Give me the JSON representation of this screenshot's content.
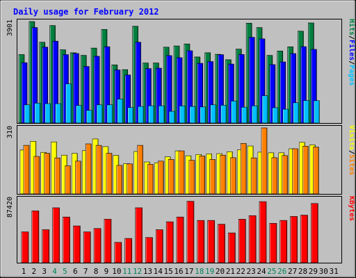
{
  "chart_data": {
    "type": "bar",
    "title": "Daily usage for February 2012",
    "x": [
      "1",
      "2",
      "3",
      "4",
      "5",
      "6",
      "7",
      "8",
      "9",
      "10",
      "11",
      "12",
      "13",
      "14",
      "15",
      "16",
      "17",
      "18",
      "19",
      "20",
      "21",
      "22",
      "23",
      "24",
      "25",
      "26",
      "27",
      "28",
      "29",
      "30",
      "31"
    ],
    "weekend_days": [
      "4",
      "5",
      "11",
      "12",
      "18",
      "19",
      "25",
      "26"
    ],
    "panels": [
      {
        "id": "hits-files-pages",
        "ymax_label": "3901",
        "ylim": [
          0,
          3901
        ],
        "legend": [
          "Pages",
          "/",
          "Files",
          "/",
          "Hits"
        ],
        "series": [
          {
            "name": "Hits",
            "color": "#008040",
            "values": [
              2632,
              3901,
              3106,
              3748,
              2817,
              2701,
              2603,
              2882,
              3598,
              2236,
              2052,
              3720,
              2308,
              2308,
              2916,
              2964,
              3040,
              2540,
              2702,
              2642,
              2434,
              2842,
              3838,
              3670,
              2600,
              2768,
              2930,
              3531,
              3848,
              null,
              null
            ]
          },
          {
            "name": "Files",
            "color": "#0000ff",
            "values": [
              2319,
              3672,
              2918,
              3148,
              2630,
              2674,
              2175,
              2567,
              2934,
              2043,
              1848,
              3109,
              2094,
              2110,
              2593,
              2513,
              2779,
              2296,
              2364,
              2628,
              2268,
              2636,
              3297,
              3236,
              2246,
              2348,
              2671,
              2936,
              2832,
              null,
              null
            ]
          },
          {
            "name": "Pages",
            "color": "#00c0ff",
            "values": [
              701,
              765,
              745,
              745,
              1505,
              676,
              489,
              701,
              701,
              922,
              597,
              638,
              663,
              663,
              451,
              659,
              638,
              619,
              701,
              683,
              847,
              608,
              662,
              1050,
              589,
              533,
              781,
              866,
              861,
              null,
              null
            ]
          }
        ]
      },
      {
        "id": "visits-sites",
        "ymax_label": "310",
        "ylim": [
          0,
          310
        ],
        "legend": [
          "Sites",
          "/",
          "Visits"
        ],
        "series": [
          {
            "name": "Visits",
            "color": "#ffff00",
            "values": [
              206,
              247,
              195,
              244,
              182,
              190,
              203,
              258,
              222,
              181,
              142,
              199,
              150,
              146,
              174,
              202,
              179,
              185,
              188,
              189,
              198,
              207,
              225,
              196,
              193,
              193,
              212,
              242,
              230,
              null,
              null
            ]
          },
          {
            "name": "Sites",
            "color": "#ff8000",
            "values": [
              228,
              176,
              191,
              169,
              132,
              154,
              235,
              228,
              191,
              134,
              141,
              228,
              139,
              154,
              162,
              202,
              158,
              178,
              162,
              182,
              170,
              237,
              169,
              310,
              170,
              180,
              212,
              224,
              220,
              null,
              null
            ]
          }
        ]
      },
      {
        "id": "kbytes",
        "ymax_label": "87420",
        "ylim": [
          0,
          87420
        ],
        "legend": [
          "KBytes"
        ],
        "series": [
          {
            "name": "KBytes",
            "color": "#ff0000",
            "values": [
              42150,
              70850,
              45150,
              75100,
              62500,
              50300,
              42150,
              46800,
              59450,
              27800,
              33200,
              75100,
              34450,
              45150,
              55950,
              62500,
              84000,
              57800,
              57800,
              52600,
              40750,
              59450,
              64350,
              83500,
              53800,
              57800,
              63250,
              65050,
              80950,
              null,
              null
            ]
          }
        ]
      }
    ]
  }
}
